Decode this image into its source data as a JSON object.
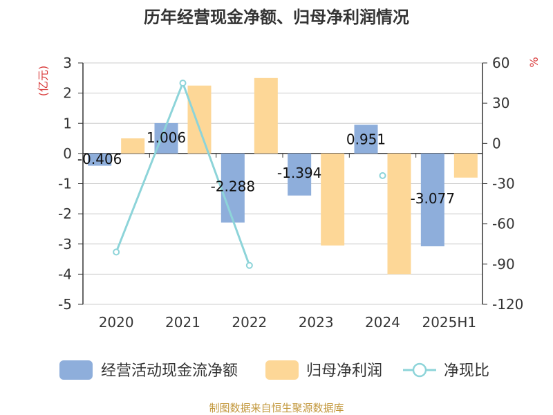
{
  "chart_data": {
    "type": "bar",
    "title": "历年经营现金净额、归母净利润情况",
    "categories": [
      "2020",
      "2021",
      "2022",
      "2023",
      "2024",
      "2025H1"
    ],
    "left_axis": {
      "unit": "(亿元)",
      "ylim": [
        -5,
        3
      ],
      "ticks": [
        "3",
        "2",
        "1",
        "0",
        "-1",
        "-2",
        "-3",
        "-4",
        "-5"
      ]
    },
    "right_axis": {
      "unit": "%",
      "ylim": [
        -120,
        60
      ],
      "ticks": [
        "60",
        "30",
        "0",
        "-30",
        "-60",
        "-90",
        "-120"
      ]
    },
    "series": [
      {
        "name": "经营活动现金流净额",
        "type": "bar",
        "axis": "left",
        "color": "#8eaedb",
        "values": [
          -0.406,
          1.006,
          -2.288,
          -1.394,
          0.951,
          -3.077
        ],
        "labels": [
          "-0.406",
          "1.006",
          "-2.288",
          "-1.394",
          "0.951",
          "-3.077"
        ]
      },
      {
        "name": "归母净利润",
        "type": "bar",
        "axis": "left",
        "color": "#fdd797",
        "values": [
          0.5,
          2.25,
          2.5,
          -3.05,
          -4.0,
          -0.8
        ]
      },
      {
        "name": "净现比",
        "type": "line",
        "axis": "right",
        "color": "#8dd4d9",
        "values": [
          -81,
          45,
          -91,
          null,
          -24,
          null
        ]
      }
    ],
    "grid": true,
    "legend": "bottom",
    "source": "制图数据来自恒生聚源数据库"
  }
}
